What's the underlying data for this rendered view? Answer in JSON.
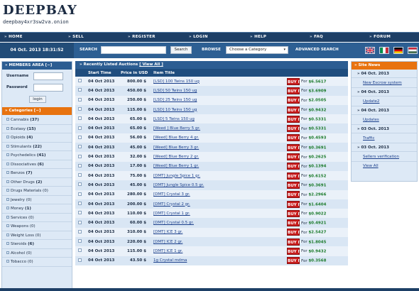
{
  "site": {
    "logo": "DEEPBAY",
    "onion": "deepbay4xr3sw2va.onion"
  },
  "nav": [
    {
      "label": "HOME"
    },
    {
      "label": "SELL"
    },
    {
      "label": "REGISTER"
    },
    {
      "label": "LOGIN"
    },
    {
      "label": "HELP"
    },
    {
      "label": "FAQ"
    },
    {
      "label": "FORUM"
    }
  ],
  "searchbar": {
    "datetime": "04 Oct. 2013 18:31:52",
    "search_label": "SEARCH",
    "search_value": "",
    "search_button": "Search",
    "browse_label": "BROWSE",
    "category_value": "Choose a Category",
    "advanced": "ADVANCED SEARCH",
    "flags": [
      {
        "name": "uk-flag-icon",
        "colors": [
          "#012169",
          "#ffffff",
          "#c8102e"
        ]
      },
      {
        "name": "italy-flag-icon",
        "colors": [
          "#009246",
          "#ffffff",
          "#ce2b37"
        ]
      },
      {
        "name": "germany-flag-icon",
        "colors": [
          "#000000",
          "#dd0000",
          "#ffce00"
        ]
      },
      {
        "name": "hungary-flag-icon",
        "colors": [
          "#ce2939",
          "#ffffff",
          "#477050"
        ]
      }
    ]
  },
  "members": {
    "title": "MEMBERS AREA [−]",
    "username_label": "Username",
    "password_label": "Password",
    "login_button": "login"
  },
  "categories": {
    "title": "Categories [−]",
    "items": [
      {
        "name": "Cannabis",
        "count": "(37)",
        "bold": true
      },
      {
        "name": "Ecstasy",
        "count": "(15)",
        "bold": true
      },
      {
        "name": "Opioids",
        "count": "(4)",
        "bold": true
      },
      {
        "name": "Stimulants",
        "count": "(22)",
        "bold": true
      },
      {
        "name": "Psychedelics",
        "count": "(41)",
        "bold": true
      },
      {
        "name": "Dissociatives",
        "count": "(6)",
        "bold": true
      },
      {
        "name": "Benzos",
        "count": "(7)",
        "bold": true
      },
      {
        "name": "Other Drugs",
        "count": "(2)",
        "bold": true
      },
      {
        "name": "Drugs Materials",
        "count": "(0)",
        "bold": false
      },
      {
        "name": "Jewelry",
        "count": "(0)",
        "bold": false
      },
      {
        "name": "Money",
        "count": "(1)",
        "bold": true
      },
      {
        "name": "Services",
        "count": "(0)",
        "bold": false
      },
      {
        "name": "Weapons",
        "count": "(0)",
        "bold": false
      },
      {
        "name": "Weight Loss",
        "count": "(0)",
        "bold": false
      },
      {
        "name": "Steroids",
        "count": "(6)",
        "bold": true
      },
      {
        "name": "Alcohol",
        "count": "(0)",
        "bold": false
      },
      {
        "name": "Tobacco",
        "count": "(0)",
        "bold": false
      }
    ]
  },
  "auctions": {
    "title": "Recently Listed Auctions",
    "view_all": "[ View All ]",
    "headers": [
      "Start Time",
      "Price in USD",
      "Item Title"
    ],
    "buy_label": "BUY IT",
    "for_label": "For",
    "rows": [
      {
        "date": "04 Oct 2013",
        "price": "800.00 $",
        "title": "[LSD] 100 Twins 150 ug",
        "usd": "$6.5617"
      },
      {
        "date": "04 Oct 2013",
        "price": "450.00 $",
        "title": "[LSD] 50 Twins 150 ug",
        "usd": "$3.6909"
      },
      {
        "date": "04 Oct 2013",
        "price": "250.00 $",
        "title": "[LSD] 25 Twins 150 ug",
        "usd": "$2.0505"
      },
      {
        "date": "04 Oct 2013",
        "price": "115.00 $",
        "title": "[LSD] 10 Twins 150 ug",
        "usd": "$0.9432"
      },
      {
        "date": "04 Oct 2013",
        "price": "65.00 $",
        "title": "[LSD] 5 Twins 150 ug",
        "usd": "$0.5331"
      },
      {
        "date": "04 Oct 2013",
        "price": "65.00 $",
        "title": "[Weed ] Blue Berry 5 gr.",
        "usd": "$0.5331"
      },
      {
        "date": "04 Oct 2013",
        "price": "56.00 $",
        "title": "[Weed] Blue Berry 4 gr.",
        "usd": "$0.4593"
      },
      {
        "date": "04 Oct 2013",
        "price": "45.00 $",
        "title": "[Weed] Blue Berry 3 gr.",
        "usd": "$0.3691"
      },
      {
        "date": "04 Oct 2013",
        "price": "32.00 $",
        "title": "[Weed] Blue Berry 2 gr.",
        "usd": "$0.2625"
      },
      {
        "date": "04 Oct 2013",
        "price": "17.00 $",
        "title": "[Weed] Blue Berry 1 gr.",
        "usd": "$0.1394"
      },
      {
        "date": "04 Oct 2013",
        "price": "75.00 $",
        "title": "[DMT] Jungle Spice 1 gr.",
        "usd": "$0.6152"
      },
      {
        "date": "04 Oct 2013",
        "price": "45.00 $",
        "title": "[DMT] Jungle Spice 0.5 gr.",
        "usd": "$0.3691"
      },
      {
        "date": "04 Oct 2013",
        "price": "280.00 $",
        "title": "[DMT] Crystal 3 gr.",
        "usd": "$2.2966"
      },
      {
        "date": "04 Oct 2013",
        "price": "200.00 $",
        "title": "[DMT] Crystal 2 gr.",
        "usd": "$1.6404"
      },
      {
        "date": "04 Oct 2013",
        "price": "110.00 $",
        "title": "[DMT] Crystal 1 gr.",
        "usd": "$0.9022"
      },
      {
        "date": "04 Oct 2013",
        "price": "60.00 $",
        "title": "[DMT] Crystal 0.5 gr.",
        "usd": "$0.4921"
      },
      {
        "date": "04 Oct 2013",
        "price": "310.00 $",
        "title": "[DMT] ICE 3 gr.",
        "usd": "$2.5427"
      },
      {
        "date": "04 Oct 2013",
        "price": "220.00 $",
        "title": "[DMT] ICE 2 gr.",
        "usd": "$1.8045"
      },
      {
        "date": "04 Oct 2013",
        "price": "115.00 $",
        "title": "[DMT] ICE 1 gr.",
        "usd": "$0.9432"
      },
      {
        "date": "04 Oct 2013",
        "price": "43.50 $",
        "title": "1g Crystal mdma",
        "usd": "$0.3568"
      }
    ]
  },
  "news": {
    "title": "Site News",
    "entries": [
      {
        "type": "date",
        "text": "04 Oct. 2013"
      },
      {
        "type": "link",
        "text": "New Escrow system"
      },
      {
        "type": "date",
        "text": "04 Oct. 2013"
      },
      {
        "type": "link",
        "text": "Update2"
      },
      {
        "type": "date",
        "text": "04 Oct. 2013"
      },
      {
        "type": "link",
        "text": "Updates"
      },
      {
        "type": "date",
        "text": "03 Oct. 2013"
      },
      {
        "type": "link",
        "text": "Traffic"
      },
      {
        "type": "date",
        "text": "03 Oct. 2013"
      },
      {
        "type": "link",
        "text": "Sellers verification"
      }
    ],
    "view_all": "View All"
  },
  "colors": {
    "nav_dark": "#1d3f66",
    "nav_mid": "#2d5f93",
    "orange": "#e8730f",
    "buyit_red": "#c81e1e",
    "usd_green": "#1a7a2a"
  }
}
